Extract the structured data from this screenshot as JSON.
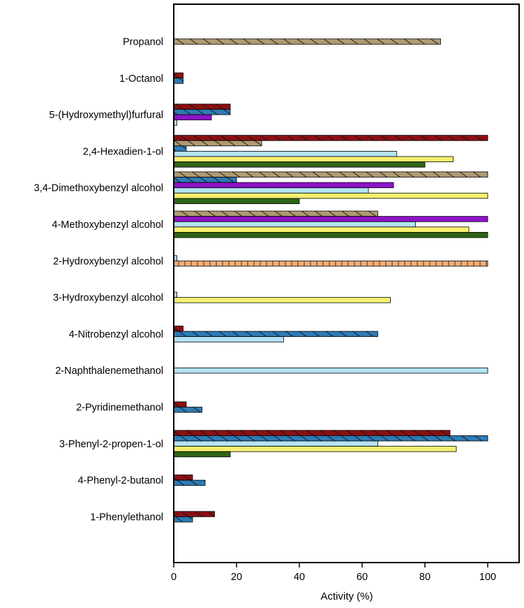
{
  "chart_data": {
    "type": "bar",
    "orientation": "horizontal",
    "title": "",
    "xlabel": "Activity (%)",
    "ylabel": "",
    "xlim": [
      0,
      110
    ],
    "xticks": [
      0,
      20,
      40,
      60,
      80,
      100
    ],
    "grid": false,
    "legend": "none",
    "categories": [
      "Propanol",
      "1-Octanol",
      "5-(Hydroxymethyl)furfural",
      "2,4-Hexadien-1-ol",
      "3,4-Dimethoxybenzyl alcohol",
      "4-Methoxybenzyl alcohol",
      "2-Hydroxybenzyl alcohol",
      "3-Hydroxybenzyl alcohol",
      "4-Nitrobenzyl alcohol",
      "2-Naphthalenemethanol",
      "2-Pyridinemethanol",
      "3-Phenyl-2-propen-1-ol",
      "4-Phenyl-2-butanol",
      "1-Phenylethanol"
    ],
    "series": [
      {
        "name": "dark red hatched",
        "color": "#8b0f12",
        "hatch": "diag",
        "values": [
          null,
          3,
          18,
          100,
          null,
          null,
          null,
          null,
          3,
          null,
          4,
          88,
          6,
          13
        ]
      },
      {
        "name": "tan hatched",
        "color": "#b09a72",
        "hatch": "diag",
        "values": [
          85,
          null,
          null,
          28,
          100,
          65,
          null,
          null,
          null,
          null,
          null,
          null,
          null,
          null
        ]
      },
      {
        "name": "blue hatched",
        "color": "#2e7bb4",
        "hatch": "diag",
        "values": [
          null,
          3,
          18,
          4,
          20,
          null,
          null,
          null,
          65,
          null,
          9,
          100,
          10,
          6
        ]
      },
      {
        "name": "purple",
        "color": "#8e13c8",
        "hatch": "none",
        "values": [
          null,
          null,
          12,
          null,
          70,
          100,
          null,
          null,
          null,
          null,
          null,
          null,
          null,
          null
        ]
      },
      {
        "name": "light blue",
        "color": "#b5e3f7",
        "hatch": "none",
        "values": [
          null,
          null,
          1,
          71,
          62,
          77,
          1,
          1,
          35,
          100,
          null,
          65,
          null,
          null
        ]
      },
      {
        "name": "orange dashed",
        "color": "#f4ad74",
        "hatch": "vert",
        "values": [
          null,
          null,
          null,
          null,
          null,
          null,
          100,
          null,
          null,
          null,
          null,
          null,
          null,
          null
        ]
      },
      {
        "name": "yellow",
        "color": "#f7f070",
        "hatch": "none",
        "values": [
          null,
          null,
          null,
          89,
          100,
          94,
          null,
          69,
          null,
          null,
          null,
          90,
          null,
          null
        ]
      },
      {
        "name": "dark green",
        "color": "#2f6417",
        "hatch": "none",
        "values": [
          null,
          null,
          null,
          80,
          40,
          100,
          null,
          null,
          null,
          null,
          null,
          18,
          null,
          null
        ]
      }
    ]
  }
}
